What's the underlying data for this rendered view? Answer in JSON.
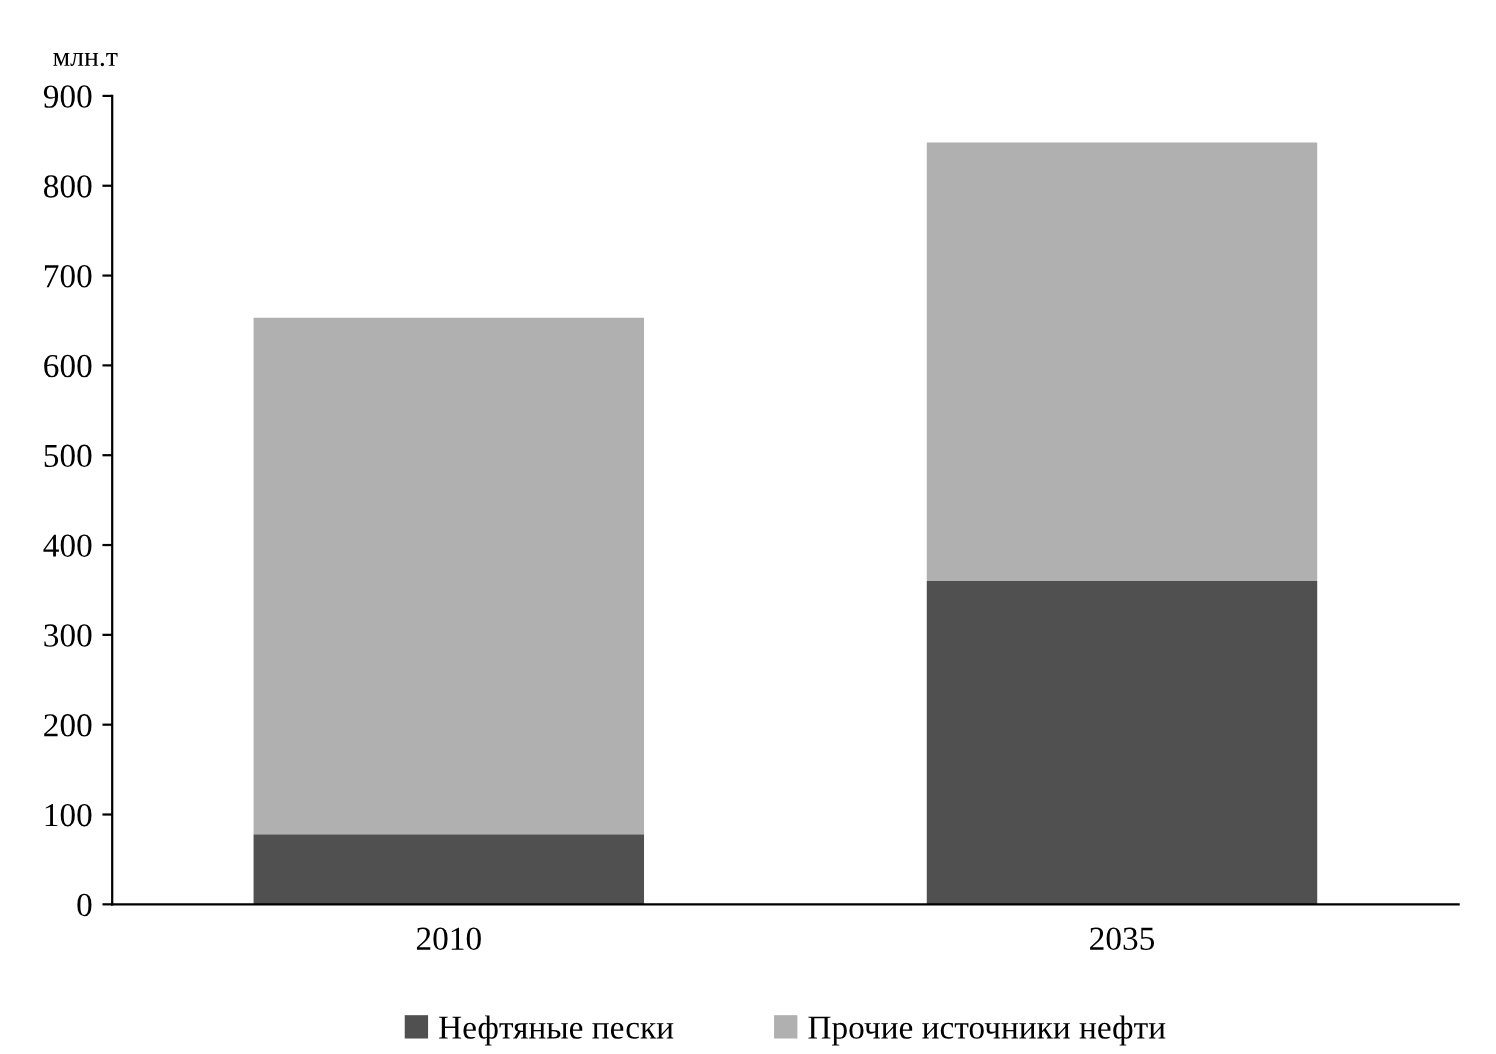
{
  "chart_data": {
    "type": "bar",
    "stacked": true,
    "ylabel": "млн.т",
    "categories": [
      "2010",
      "2035"
    ],
    "series": [
      {
        "name": "Нефтяные пески",
        "color": "#505050",
        "values": [
          78,
          360
        ]
      },
      {
        "name": "Прочие источники нефти",
        "color": "#b0b0b0",
        "values": [
          575,
          488
        ]
      }
    ],
    "ylim": [
      0,
      900
    ],
    "yticks": [
      0,
      100,
      200,
      300,
      400,
      500,
      600,
      700,
      800,
      900
    ],
    "grid": false,
    "legend": "bottom"
  }
}
